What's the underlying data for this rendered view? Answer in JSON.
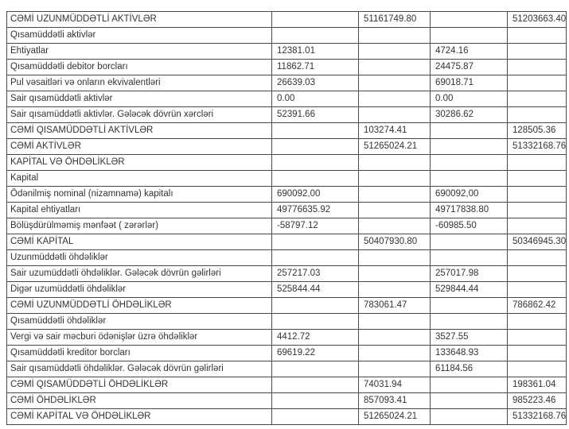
{
  "table": {
    "rows": [
      {
        "label": "CƏMİ UZUNMÜDDƏTLİ AKTİVLƏR",
        "c1": "",
        "c2": "51161749.80",
        "c3": "",
        "c4": "51203663.40"
      },
      {
        "label": "Qısamüddətli aktivlər",
        "c1": "",
        "c2": "",
        "c3": "",
        "c4": ""
      },
      {
        "label": "Ehtiyatlar",
        "c1": "12381.01",
        "c2": "",
        "c3": "4724.16",
        "c4": ""
      },
      {
        "label": "Qısamüddətli debitor borcları",
        "c1": "11862.71",
        "c2": "",
        "c3": "24475.87",
        "c4": ""
      },
      {
        "label": "Pul vəsaitləri və onların ekvivalentləri",
        "c1": "26639.03",
        "c2": "",
        "c3": "69018.71",
        "c4": ""
      },
      {
        "label": "Sair qısamüddətli aktivlər",
        "c1": "0.00",
        "c2": "",
        "c3": "0.00",
        "c4": ""
      },
      {
        "label": "Sair qısamüddətli aktivlər. Gələcək dövrün xərcləri",
        "c1": "52391.66",
        "c2": "",
        "c3": "30286.62",
        "c4": ""
      },
      {
        "label": "CƏMİ QISAMÜDDƏTLİ AKTİVLƏR",
        "c1": "",
        "c2": "103274.41",
        "c3": "",
        "c4": "128505.36"
      },
      {
        "label": "CƏMİ AKTİVLƏR",
        "c1": "",
        "c2": "51265024.21",
        "c3": "",
        "c4": "51332168.76"
      },
      {
        "label": "KAPİTAL VƏ ÖHDƏLİKLƏR",
        "c1": "",
        "c2": "",
        "c3": "",
        "c4": ""
      },
      {
        "label": "Kapital",
        "c1": "",
        "c2": "",
        "c3": "",
        "c4": ""
      },
      {
        "label": "Ödənilmiş nominal (nizamnamə) kapitalı",
        "c1": "690092,00",
        "c2": "",
        "c3": "690092,00",
        "c4": ""
      },
      {
        "label": "Kapital ehtiyatları",
        "c1": "49776635.92",
        "c2": "",
        "c3": "49717838.80",
        "c4": ""
      },
      {
        "label": "Bölüşdürülməmiş mənfəət ( zərərlər)",
        "c1": "-58797.12",
        "c2": "",
        "c3": "-60985.50",
        "c4": ""
      },
      {
        "label": "CƏMİ KAPİTAL",
        "c1": "",
        "c2": "50407930.80",
        "c3": "",
        "c4": "50346945.30"
      },
      {
        "label": "Uzunmüddətli öhdəliklər",
        "c1": "",
        "c2": "",
        "c3": "",
        "c4": ""
      },
      {
        "label": "Sair uzumüddətli öhdəliklər. Gələcək dövrün gəlirləri",
        "c1": "257217.03",
        "c2": "",
        "c3": "257017.98",
        "c4": ""
      },
      {
        "label": "Digər uzumüddətli öhdəliklər",
        "c1": "525844.44",
        "c2": "",
        "c3": "529844.44",
        "c4": ""
      },
      {
        "label": "CƏMİ UZUNMÜDDƏTLİ ÖHDƏLİKLƏR",
        "c1": "",
        "c2": "783061.47",
        "c3": "",
        "c4": "786862.42"
      },
      {
        "label": "Qısamüddətli öhdəliklər",
        "c1": "",
        "c2": "",
        "c3": "",
        "c4": ""
      },
      {
        "label": "Vergi və sair məcburi ödənişlər üzrə öhdəliklər",
        "c1": "4412.72",
        "c2": "",
        "c3": "3527.55",
        "c4": ""
      },
      {
        "label": "Qısamüddətli kreditor borcları",
        "c1": "69619.22",
        "c2": "",
        "c3": "133648.93",
        "c4": ""
      },
      {
        "label": "Sair qısamüddətli öhdəliklər. Gələcək dövrün gəlirləri",
        "c1": "",
        "c2": "",
        "c3": "61184.56",
        "c4": ""
      },
      {
        "label": "CƏMİ QISAMÜDDƏTLİ ÖHDƏLİKLƏR",
        "c1": "",
        "c2": "74031.94",
        "c3": "",
        "c4": "198361.04"
      },
      {
        "label": "CƏMİ ÖHDƏLİKLƏR",
        "c1": "",
        "c2": "857093.41",
        "c3": "",
        "c4": "985223.46"
      },
      {
        "label": "CƏMİ KAPİTAL VƏ ÖHDƏLİKLƏR",
        "c1": "",
        "c2": "51265024.21",
        "c3": "",
        "c4": "51332168.76"
      }
    ]
  }
}
